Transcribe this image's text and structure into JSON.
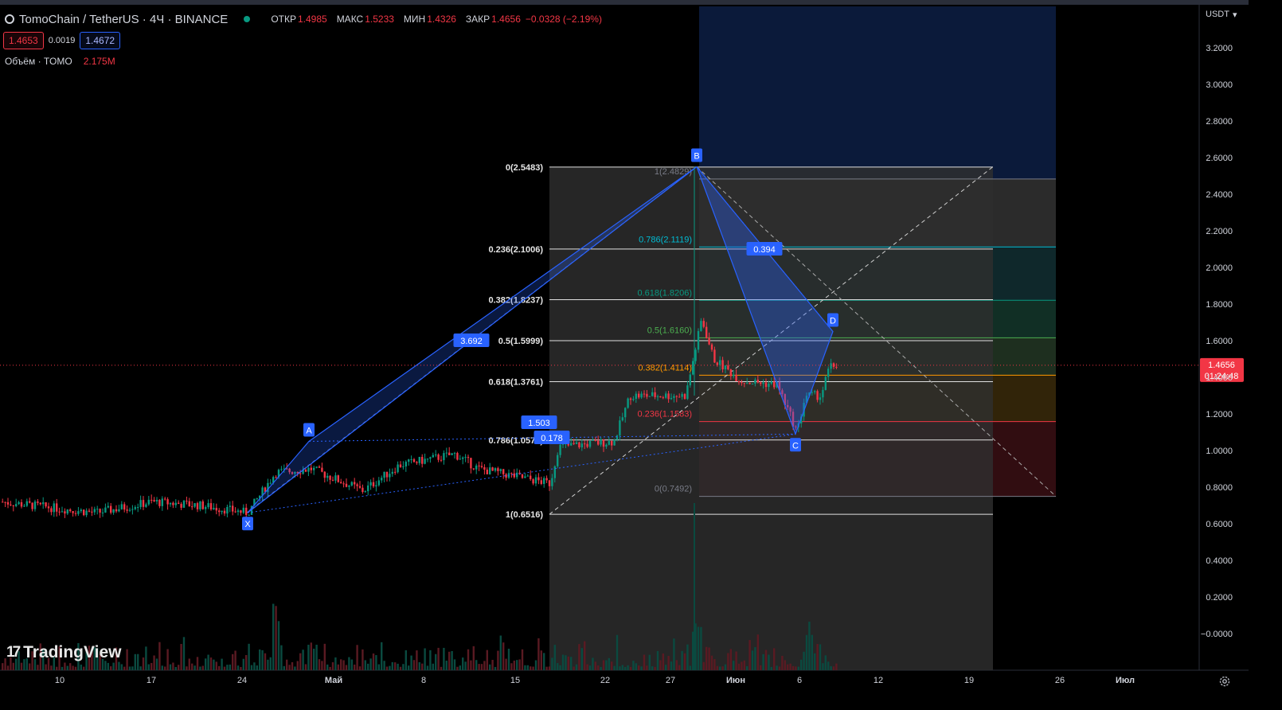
{
  "header": {
    "symbol_title": "TomoChain / TetherUS · 4Ч · BINANCE",
    "open_label": "ОТКР",
    "open_value": "1.4985",
    "high_label": "МАКС",
    "high_value": "1.5233",
    "low_label": "МИН",
    "low_value": "1.4326",
    "close_label": "ЗАКР",
    "close_value": "1.4656",
    "change": "−0.0328 (−2.19%)",
    "bid": "1.4653",
    "spread": "0.0019",
    "ask": "1.4672",
    "volume_label": "Объём · TOMO",
    "volume_value": "2.175M"
  },
  "brand": {
    "logo_text": "TradingView",
    "logo_mark": "17"
  },
  "price_axis": {
    "currency": "USDT",
    "ticks": [
      "3.2000",
      "3.0000",
      "2.8000",
      "2.6000",
      "2.4000",
      "2.2000",
      "2.0000",
      "1.8000",
      "1.6000",
      "1.4000",
      "1.2000",
      "1.0000",
      "0.8000",
      "0.6000",
      "0.4000",
      "0.2000",
      "−0.0000"
    ],
    "last_price": "1.4656",
    "countdown": "01:24:48"
  },
  "time_axis": {
    "ticks": [
      "10",
      "17",
      "24",
      "Май",
      "8",
      "15",
      "22",
      "27",
      "Июн",
      "6",
      "12",
      "19",
      "26",
      "Июл"
    ]
  },
  "fib_retracement": {
    "levels": [
      {
        "ratio": 0,
        "price": 2.5483,
        "label": "0(2.5483)"
      },
      {
        "ratio": 0.236,
        "price": 2.1006,
        "label": "0.236(2.1006)"
      },
      {
        "ratio": 0.382,
        "price": 1.8237,
        "label": "0.382(1.8237)"
      },
      {
        "ratio": 0.5,
        "price": 1.5999,
        "label": "0.5(1.5999)"
      },
      {
        "ratio": 0.618,
        "price": 1.3761,
        "label": "0.618(1.3761)"
      },
      {
        "ratio": 0.786,
        "price": 1.0575,
        "label": "0.786(1.0575)"
      },
      {
        "ratio": 1,
        "price": 0.6516,
        "label": "1(0.6516)"
      }
    ]
  },
  "fib_extension": {
    "levels": [
      {
        "ratio": 1,
        "price": 2.4829,
        "label": "1(2.4829)",
        "color": "#787b86"
      },
      {
        "ratio": 0.786,
        "price": 2.1119,
        "label": "0.786(2.1119)",
        "color": "#00bcd4"
      },
      {
        "ratio": 0.618,
        "price": 1.8206,
        "label": "0.618(1.8206)",
        "color": "#089981"
      },
      {
        "ratio": 0.5,
        "price": 1.616,
        "label": "0.5(1.6160)",
        "color": "#4caf50"
      },
      {
        "ratio": 0.382,
        "price": 1.4114,
        "label": "0.382(1.4114)",
        "color": "#ff9800"
      },
      {
        "ratio": 0.236,
        "price": 1.1583,
        "label": "0.236(1.1583)",
        "color": "#f23645"
      },
      {
        "ratio": 0,
        "price": 0.7492,
        "label": "0(0.7492)",
        "color": "#787b86"
      }
    ]
  },
  "harmonic_pattern": {
    "points": [
      {
        "name": "X",
        "price": 0.66
      },
      {
        "name": "A",
        "price": 1.05
      },
      {
        "name": "B",
        "price": 2.55
      },
      {
        "name": "C",
        "price": 1.09
      },
      {
        "name": "D",
        "price": 1.65
      }
    ],
    "ratios": [
      {
        "label": "3.692"
      },
      {
        "label": "1.503"
      },
      {
        "label": "0.178"
      },
      {
        "label": "0.394"
      }
    ]
  },
  "colors": {
    "up": "#089981",
    "down": "#f23645",
    "pattern": "#2962ff",
    "axis_bg": "#000000"
  }
}
